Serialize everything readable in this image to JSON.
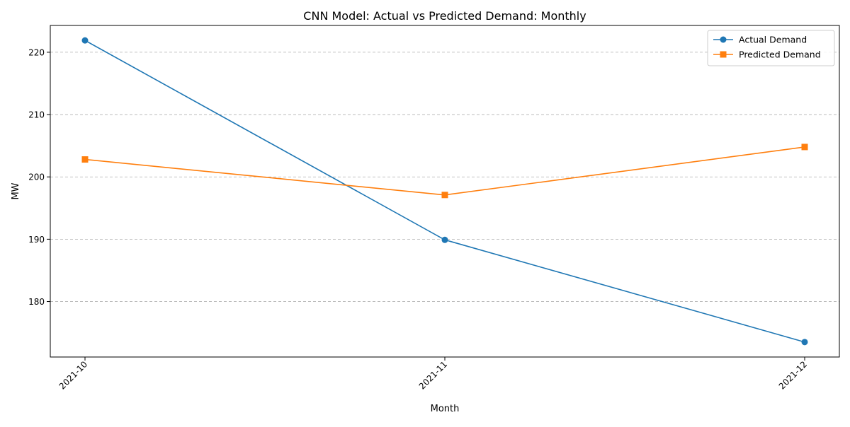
{
  "chart_data": {
    "type": "line",
    "title": "CNN Model: Actual vs Predicted Demand: Monthly",
    "xlabel": "Month",
    "ylabel": "MW",
    "categories": [
      "2021-10",
      "2021-11",
      "2021-12"
    ],
    "series": [
      {
        "name": "Actual Demand",
        "values": [
          221.9,
          189.9,
          173.5
        ],
        "color": "#1f77b4",
        "marker": "circle"
      },
      {
        "name": "Predicted Demand",
        "values": [
          202.8,
          197.1,
          204.8
        ],
        "color": "#ff7f0e",
        "marker": "square"
      }
    ],
    "ylim": [
      171.1,
      224.3
    ],
    "yticks": [
      180,
      190,
      200,
      210,
      220
    ],
    "grid": "y-dashed",
    "legend_position": "top-right"
  }
}
